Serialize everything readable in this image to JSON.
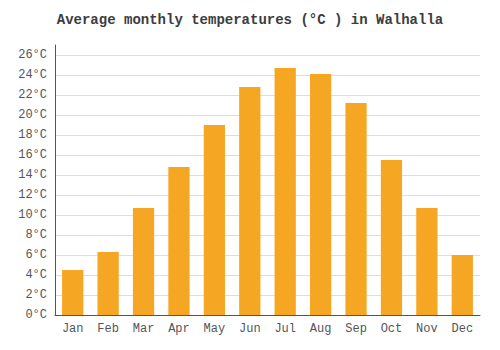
{
  "chart_data": {
    "type": "bar",
    "title": "Average monthly temperatures (°C ) in Walhalla",
    "categories": [
      "Jan",
      "Feb",
      "Mar",
      "Apr",
      "May",
      "Jun",
      "Jul",
      "Aug",
      "Sep",
      "Oct",
      "Nov",
      "Dec"
    ],
    "values": [
      4.5,
      6.3,
      10.7,
      14.8,
      19.0,
      22.8,
      24.7,
      24.1,
      21.2,
      15.5,
      10.7,
      6.0
    ],
    "color": "#F5A623",
    "ylim": [
      0,
      27
    ],
    "yticks": [
      {
        "value": 0,
        "label": "0°C"
      },
      {
        "value": 2,
        "label": "2°C"
      },
      {
        "value": 4,
        "label": "4°C"
      },
      {
        "value": 6,
        "label": "6°C"
      },
      {
        "value": 8,
        "label": "8°C"
      },
      {
        "value": 10,
        "label": "10°C"
      },
      {
        "value": 12,
        "label": "12°C"
      },
      {
        "value": 14,
        "label": "14°C"
      },
      {
        "value": 16,
        "label": "16°C"
      },
      {
        "value": 18,
        "label": "18°C"
      },
      {
        "value": 20,
        "label": "20°C"
      },
      {
        "value": 22,
        "label": "22°C"
      },
      {
        "value": 24,
        "label": "24°C"
      },
      {
        "value": 26,
        "label": "26°C"
      }
    ],
    "grid": true
  }
}
